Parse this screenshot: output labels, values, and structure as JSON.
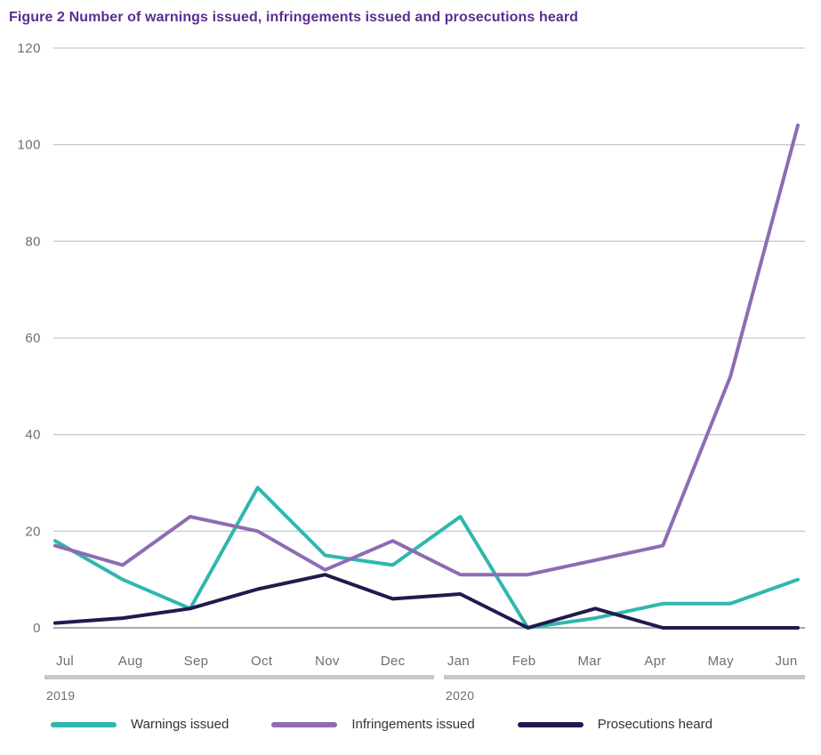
{
  "title": "Figure 2 Number of warnings issued, infringements issued and prosecutions heard",
  "colors": {
    "title_text": "#5c2d91",
    "axis_text": "#6d6e71",
    "gridline": "#c9cacc",
    "zero_gridline": "#a8aaad",
    "year_bar": "#c6c7c9",
    "legend_text": "#333333"
  },
  "chart_data": {
    "type": "line",
    "title": "Figure 2 Number of warnings issued, infringements issued and prosecutions heard",
    "x": [
      "Jul",
      "Aug",
      "Sep",
      "Oct",
      "Nov",
      "Dec",
      "Jan",
      "Feb",
      "Mar",
      "Apr",
      "May",
      "Jun"
    ],
    "year_groups": [
      {
        "label": "2019",
        "start": "Jul",
        "end": "Dec"
      },
      {
        "label": "2020",
        "start": "Jan",
        "end": "Jun"
      }
    ],
    "series": [
      {
        "name": "Warnings issued",
        "color": "#2fb7ae",
        "values": [
          18,
          10,
          4,
          29,
          15,
          13,
          23,
          0,
          2,
          5,
          5,
          10
        ]
      },
      {
        "name": "Infringements issued",
        "color": "#8d6cb3",
        "values": [
          17,
          13,
          23,
          20,
          12,
          18,
          11,
          11,
          14,
          17,
          52,
          104
        ]
      },
      {
        "name": "Prosecutions heard",
        "color": "#221a4e",
        "values": [
          1,
          2,
          4,
          8,
          11,
          6,
          7,
          0,
          4,
          0,
          0,
          0
        ]
      }
    ],
    "ylim": [
      0,
      120
    ],
    "yticks": [
      0,
      20,
      40,
      60,
      80,
      100,
      120
    ],
    "xlabel": "",
    "ylabel": "",
    "grid": true,
    "legend_position": "bottom"
  }
}
